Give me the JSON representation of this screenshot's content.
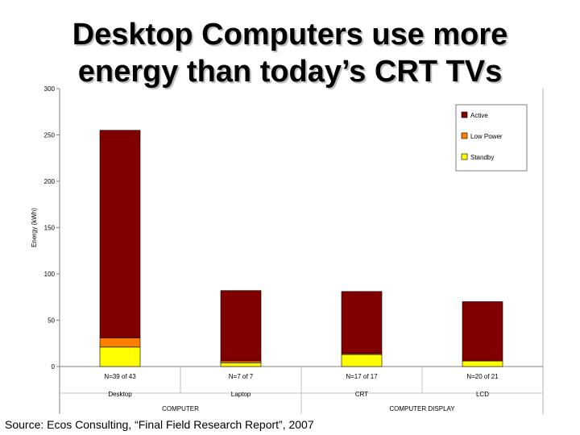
{
  "title_lines": [
    "Desktop Computers use more",
    "energy than today’s CRT TVs"
  ],
  "source_text": "Source: Ecos Consulting, “Final Field Research Report”, 2007",
  "chart_data": {
    "type": "bar",
    "stacked": true,
    "categories": [
      "Desktop",
      "Laptop",
      "CRT",
      "LCD"
    ],
    "category_notes": [
      "N=39 of 43",
      "N=7 of 7",
      "N=17 of 17",
      "N=20 of 21"
    ],
    "groups": [
      {
        "label": "COMPUTER",
        "categories": [
          "Desktop",
          "Laptop"
        ]
      },
      {
        "label": "COMPUTER DISPLAY",
        "categories": [
          "CRT",
          "LCD"
        ]
      }
    ],
    "series": [
      {
        "name": "Standby",
        "color": "#ffff00",
        "values": [
          21,
          4,
          13,
          6
        ]
      },
      {
        "name": "Low Power",
        "color": "#ff7f00",
        "values": [
          10,
          2,
          1,
          0
        ]
      },
      {
        "name": "Active",
        "color": "#800000",
        "values": [
          224,
          76,
          67,
          64
        ]
      }
    ],
    "legend_order": [
      "Active",
      "Low Power",
      "Standby"
    ],
    "legend_position": "top-right",
    "ylabel": "Energy (kWh)",
    "xlabel": "",
    "ylim": [
      0,
      300
    ],
    "yticks": [
      0,
      50,
      100,
      150,
      200,
      250,
      300
    ],
    "grid": false
  }
}
